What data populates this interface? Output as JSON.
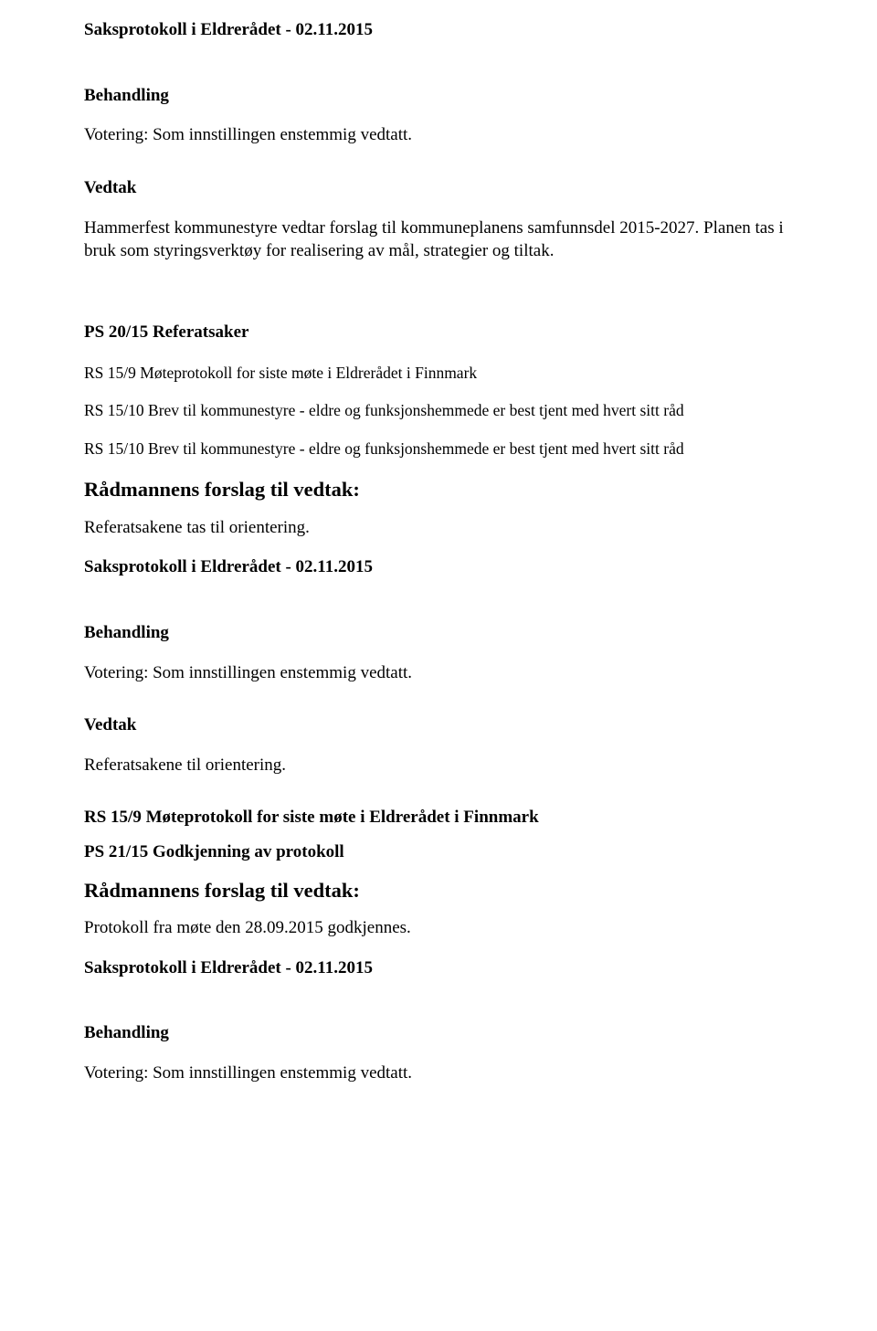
{
  "colors": {
    "text": "#000000",
    "background": "#ffffff"
  },
  "fonts": {
    "body_family": "Times New Roman",
    "body_size_pt": 12,
    "ref_size_pt": 11,
    "heading_lg_size_pt": 14
  },
  "section1": {
    "protocol_title": "Saksprotokoll i Eldrerådet - 02.11.2015",
    "behandling_label": "Behandling",
    "voting_text": "Votering: Som innstillingen enstemmig vedtatt.",
    "vedtak_label": "Vedtak",
    "vedtak_text": "Hammerfest kommunestyre vedtar forslag til kommuneplanens samfunnsdel 2015-2027. Planen tas i bruk som styringsverktøy for realisering av mål, strategier og tiltak."
  },
  "section2": {
    "ps_title": "PS 20/15 Referatsaker",
    "rs1": "RS 15/9 Møteprotokoll for siste møte i Eldrerådet i Finnmark",
    "rs2": "RS 15/10 Brev til kommunestyre - eldre og funksjonshemmede er best tjent med hvert sitt råd",
    "rs3": "RS 15/10 Brev til kommunestyre - eldre og funksjonshemmede er best tjent med hvert sitt råd",
    "forslag_heading": "Rådmannens forslag til vedtak:",
    "forslag_text": "Referatsakene tas til orientering.",
    "protocol_title": "Saksprotokoll i Eldrerådet - 02.11.2015",
    "behandling_label": "Behandling",
    "voting_text": "Votering: Som innstillingen enstemmig vedtatt.",
    "vedtak_label": "Vedtak",
    "vedtak_text": "Referatsakene til orientering."
  },
  "section3": {
    "rs_head": "RS 15/9 Møteprotokoll for siste møte i Eldrerådet i Finnmark",
    "ps_title": "PS 21/15 Godkjenning av protokoll",
    "forslag_heading": "Rådmannens forslag til vedtak:",
    "forslag_text": "Protokoll fra møte den 28.09.2015 godkjennes.",
    "protocol_title": "Saksprotokoll i Eldrerådet - 02.11.2015",
    "behandling_label": "Behandling",
    "voting_text": "Votering: Som innstillingen enstemmig vedtatt."
  }
}
